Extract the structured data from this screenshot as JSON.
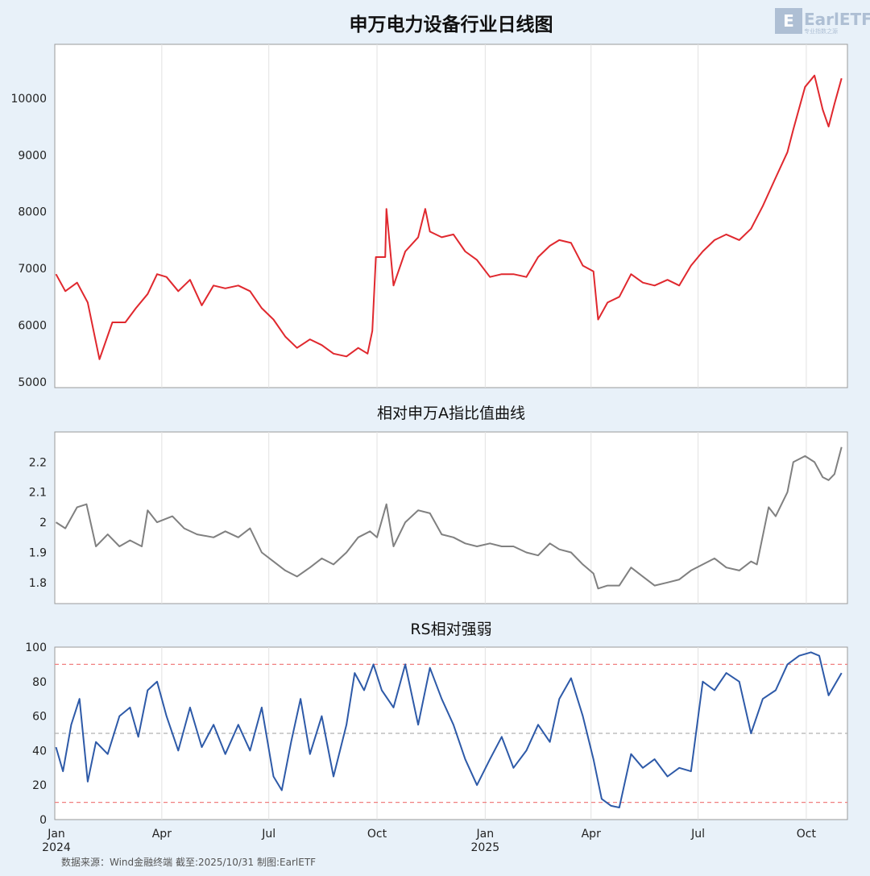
{
  "chart_data": [
    {
      "type": "line",
      "title": "申万电力设备行业日线图",
      "color": "#e0282e",
      "yticks": [
        5000,
        6000,
        7000,
        8000,
        9000,
        10000
      ],
      "ylim": [
        4900,
        10950
      ],
      "x": [
        "2024-01-02",
        "2024-01-10",
        "2024-01-20",
        "2024-01-29",
        "2024-02-05",
        "2024-02-08",
        "2024-02-19",
        "2024-03-01",
        "2024-03-10",
        "2024-03-20",
        "2024-03-28",
        "2024-04-05",
        "2024-04-15",
        "2024-04-25",
        "2024-05-05",
        "2024-05-15",
        "2024-05-25",
        "2024-06-05",
        "2024-06-15",
        "2024-06-25",
        "2024-07-05",
        "2024-07-15",
        "2024-07-25",
        "2024-08-05",
        "2024-08-15",
        "2024-08-25",
        "2024-09-05",
        "2024-09-15",
        "2024-09-23",
        "2024-09-27",
        "2024-09-30",
        "2024-10-08",
        "2024-10-09",
        "2024-10-15",
        "2024-10-25",
        "2024-11-05",
        "2024-11-11",
        "2024-11-15",
        "2024-11-25",
        "2024-12-05",
        "2024-12-15",
        "2024-12-25",
        "2025-01-05",
        "2025-01-15",
        "2025-01-25",
        "2025-02-05",
        "2025-02-15",
        "2025-02-25",
        "2025-03-05",
        "2025-03-15",
        "2025-03-25",
        "2025-04-03",
        "2025-04-07",
        "2025-04-15",
        "2025-04-25",
        "2025-05-05",
        "2025-05-15",
        "2025-05-25",
        "2025-06-05",
        "2025-06-15",
        "2025-06-25",
        "2025-07-05",
        "2025-07-15",
        "2025-07-25",
        "2025-08-05",
        "2025-08-15",
        "2025-08-25",
        "2025-09-05",
        "2025-09-15",
        "2025-09-20",
        "2025-09-30",
        "2025-10-08",
        "2025-10-15",
        "2025-10-20",
        "2025-10-25",
        "2025-10-31"
      ],
      "values": [
        6900,
        6600,
        6750,
        6400,
        5700,
        5400,
        6050,
        6050,
        6300,
        6550,
        6900,
        6850,
        6600,
        6800,
        6350,
        6700,
        6650,
        6700,
        6600,
        6300,
        6100,
        5800,
        5600,
        5750,
        5650,
        5500,
        5450,
        5600,
        5500,
        5900,
        7200,
        7200,
        8050,
        6700,
        7300,
        7550,
        8050,
        7650,
        7550,
        7600,
        7300,
        7150,
        6850,
        6900,
        6900,
        6850,
        7200,
        7400,
        7500,
        7450,
        7050,
        6950,
        6100,
        6400,
        6500,
        6900,
        6750,
        6700,
        6800,
        6700,
        7050,
        7300,
        7500,
        7600,
        7500,
        7700,
        8100,
        8600,
        9050,
        9450,
        10200,
        10400,
        9800,
        9500,
        9900,
        10350
      ]
    },
    {
      "type": "line",
      "title": "相对申万A指比值曲线",
      "color": "#808080",
      "yticks": [
        1.8,
        1.9,
        2.0,
        2.1,
        2.2
      ],
      "ylim": [
        1.73,
        2.3
      ],
      "x": [
        "2024-01-02",
        "2024-01-10",
        "2024-01-20",
        "2024-01-28",
        "2024-02-05",
        "2024-02-15",
        "2024-02-25",
        "2024-03-05",
        "2024-03-15",
        "2024-03-20",
        "2024-03-28",
        "2024-04-10",
        "2024-04-20",
        "2024-05-01",
        "2024-05-15",
        "2024-05-25",
        "2024-06-05",
        "2024-06-15",
        "2024-06-25",
        "2024-07-05",
        "2024-07-15",
        "2024-07-25",
        "2024-08-05",
        "2024-08-15",
        "2024-08-25",
        "2024-09-05",
        "2024-09-15",
        "2024-09-25",
        "2024-10-01",
        "2024-10-09",
        "2024-10-15",
        "2024-10-25",
        "2024-11-05",
        "2024-11-15",
        "2024-11-25",
        "2024-12-05",
        "2024-12-15",
        "2024-12-25",
        "2025-01-05",
        "2025-01-15",
        "2025-01-25",
        "2025-02-05",
        "2025-02-15",
        "2025-02-25",
        "2025-03-05",
        "2025-03-15",
        "2025-03-25",
        "2025-04-03",
        "2025-04-07",
        "2025-04-15",
        "2025-04-25",
        "2025-05-05",
        "2025-05-15",
        "2025-05-25",
        "2025-06-05",
        "2025-06-15",
        "2025-06-25",
        "2025-07-05",
        "2025-07-15",
        "2025-07-25",
        "2025-08-05",
        "2025-08-15",
        "2025-08-20",
        "2025-08-30",
        "2025-09-05",
        "2025-09-15",
        "2025-09-20",
        "2025-09-30",
        "2025-10-08",
        "2025-10-15",
        "2025-10-20",
        "2025-10-25",
        "2025-10-31"
      ],
      "values": [
        2.0,
        1.98,
        2.05,
        2.06,
        1.92,
        1.96,
        1.92,
        1.94,
        1.92,
        2.04,
        2.0,
        2.02,
        1.98,
        1.96,
        1.95,
        1.97,
        1.95,
        1.98,
        1.9,
        1.87,
        1.84,
        1.82,
        1.85,
        1.88,
        1.86,
        1.9,
        1.95,
        1.97,
        1.95,
        2.06,
        1.92,
        2.0,
        2.04,
        2.03,
        1.96,
        1.95,
        1.93,
        1.92,
        1.93,
        1.92,
        1.92,
        1.9,
        1.89,
        1.93,
        1.91,
        1.9,
        1.86,
        1.83,
        1.78,
        1.79,
        1.79,
        1.85,
        1.82,
        1.79,
        1.8,
        1.81,
        1.84,
        1.86,
        1.88,
        1.85,
        1.84,
        1.87,
        1.86,
        2.05,
        2.02,
        2.1,
        2.2,
        2.22,
        2.2,
        2.15,
        2.14,
        2.16,
        2.25
      ]
    },
    {
      "type": "line",
      "title": "RS相对强弱",
      "color": "#2e5aa8",
      "ylim": [
        0,
        100
      ],
      "yticks": [
        0,
        20,
        40,
        60,
        80,
        100
      ],
      "reference_lines": [
        {
          "y": 90,
          "color": "#f08080"
        },
        {
          "y": 50,
          "color": "#b0b0b0"
        },
        {
          "y": 10,
          "color": "#f08080"
        }
      ],
      "xtick_labels": [
        {
          "date": "2024-01-01",
          "label": "Jan",
          "year": "2024"
        },
        {
          "date": "2024-04-01",
          "label": "Apr",
          "year": ""
        },
        {
          "date": "2024-07-01",
          "label": "Jul",
          "year": ""
        },
        {
          "date": "2024-10-01",
          "label": "Oct",
          "year": ""
        },
        {
          "date": "2025-01-01",
          "label": "Jan",
          "year": "2025"
        },
        {
          "date": "2025-04-01",
          "label": "Apr",
          "year": ""
        },
        {
          "date": "2025-07-01",
          "label": "Jul",
          "year": ""
        },
        {
          "date": "2025-10-01",
          "label": "Oct",
          "year": ""
        }
      ],
      "x": [
        "2024-01-02",
        "2024-01-08",
        "2024-01-15",
        "2024-01-22",
        "2024-01-29",
        "2024-02-05",
        "2024-02-15",
        "2024-02-25",
        "2024-03-05",
        "2024-03-12",
        "2024-03-20",
        "2024-03-28",
        "2024-04-05",
        "2024-04-15",
        "2024-04-25",
        "2024-05-05",
        "2024-05-15",
        "2024-05-25",
        "2024-06-05",
        "2024-06-15",
        "2024-06-25",
        "2024-07-05",
        "2024-07-12",
        "2024-07-20",
        "2024-07-28",
        "2024-08-05",
        "2024-08-15",
        "2024-08-25",
        "2024-09-05",
        "2024-09-12",
        "2024-09-20",
        "2024-09-28",
        "2024-10-05",
        "2024-10-15",
        "2024-10-25",
        "2024-11-05",
        "2024-11-15",
        "2024-11-25",
        "2024-12-05",
        "2024-12-15",
        "2024-12-25",
        "2025-01-05",
        "2025-01-15",
        "2025-01-25",
        "2025-02-05",
        "2025-02-15",
        "2025-02-25",
        "2025-03-05",
        "2025-03-15",
        "2025-03-25",
        "2025-04-03",
        "2025-04-10",
        "2025-04-18",
        "2025-04-25",
        "2025-05-05",
        "2025-05-15",
        "2025-05-25",
        "2025-06-05",
        "2025-06-15",
        "2025-06-25",
        "2025-07-05",
        "2025-07-15",
        "2025-07-25",
        "2025-08-05",
        "2025-08-15",
        "2025-08-25",
        "2025-09-05",
        "2025-09-15",
        "2025-09-25",
        "2025-10-05",
        "2025-10-12",
        "2025-10-20",
        "2025-10-31"
      ],
      "values": [
        42,
        28,
        55,
        70,
        22,
        45,
        38,
        60,
        65,
        48,
        75,
        80,
        60,
        40,
        65,
        42,
        55,
        38,
        55,
        40,
        65,
        25,
        17,
        45,
        70,
        38,
        60,
        25,
        55,
        85,
        75,
        90,
        75,
        65,
        90,
        55,
        88,
        70,
        55,
        35,
        20,
        35,
        48,
        30,
        40,
        55,
        45,
        70,
        82,
        60,
        35,
        12,
        8,
        7,
        38,
        30,
        35,
        25,
        30,
        28,
        80,
        75,
        85,
        80,
        50,
        70,
        75,
        90,
        95,
        97,
        95,
        72,
        85
      ]
    }
  ],
  "source_note": "数据来源：Wind金融终端 截至:2025/10/31 制图:EarlETF",
  "logo": {
    "text": "EarlETF",
    "tagline": "专业指数之源"
  }
}
